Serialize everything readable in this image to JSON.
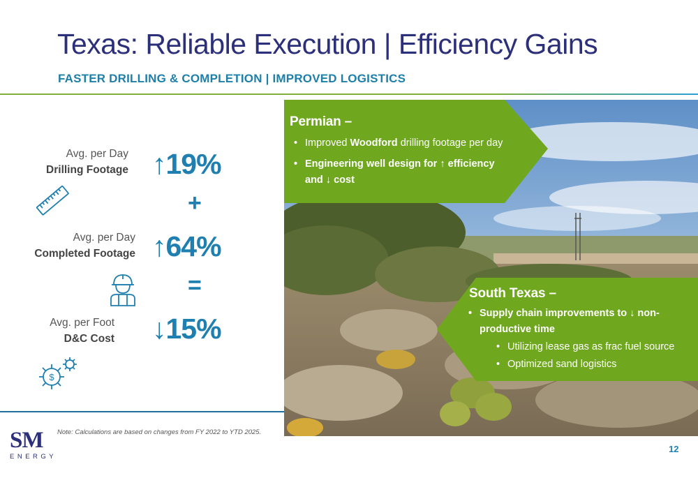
{
  "header": {
    "title": "Texas: Reliable Execution | Efficiency Gains",
    "subtitle": "FASTER DRILLING & COMPLETION | IMPROVED LOGISTICS"
  },
  "metrics": [
    {
      "label_line1": "Avg. per Day",
      "label_line2": "Drilling Footage",
      "arrow": "↑",
      "value": "19%",
      "icon": "ruler-icon"
    },
    {
      "label_line1": "Avg. per Day",
      "label_line2": "Completed Footage",
      "arrow": "↑",
      "value": "64%",
      "icon": "worker-icon"
    },
    {
      "label_line1": "Avg. per Foot",
      "label_line2": "D&C Cost",
      "arrow": "↓",
      "value": "15%",
      "icon": "gears-cost-icon"
    }
  ],
  "operators": {
    "plus": "+",
    "equals": "="
  },
  "permian": {
    "heading": "Permian –",
    "bullet1_pre": "Improved ",
    "bullet1_bold": "Woodford",
    "bullet1_post": " drilling footage per day",
    "bullet2_line1": "Engineering well design for ↑ efficiency",
    "bullet2_line2": "and ↓ cost"
  },
  "south_texas": {
    "heading": "South Texas –",
    "bullet1_line1": "Supply chain improvements to ↓ non-",
    "bullet1_line2": "productive time",
    "sub1": "Utilizing lease gas as frac fuel source",
    "sub2": "Optimized sand logistics"
  },
  "footer": {
    "note": "Note: Calculations are based on changes from FY 2022 to YTD 2025.",
    "page_number": "12",
    "logo_main": "SM",
    "logo_sub": "ENERGY"
  },
  "colors": {
    "title": "#2c2f7a",
    "accent_blue": "#1f7fb0",
    "callout_green": "#6fa81e",
    "rule_green": "#7fb03a"
  }
}
